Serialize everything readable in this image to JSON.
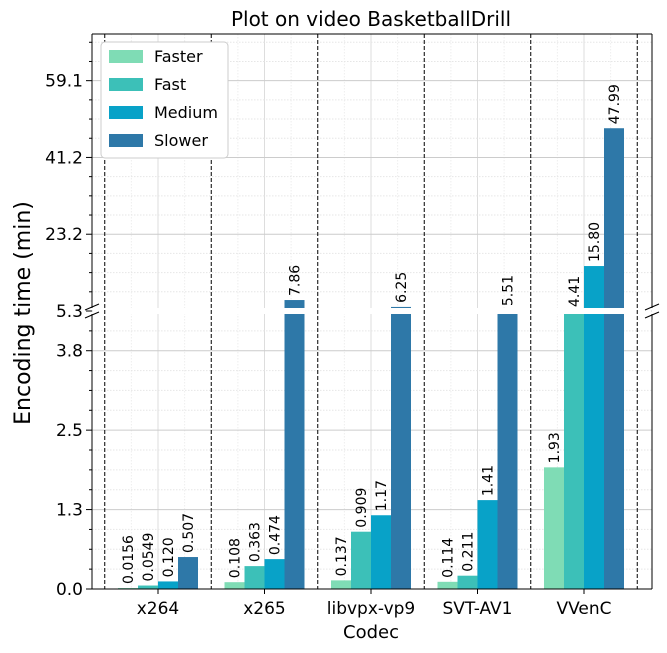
{
  "chart_data": {
    "type": "bar",
    "title": "Plot on video BasketballDrill",
    "xlabel": "Codec",
    "ylabel": "Encoding time (min)",
    "categories": [
      "x264",
      "x265",
      "libvpx-vp9",
      "SVT-AV1",
      "VVenC"
    ],
    "series": [
      {
        "name": "Faster",
        "color": "#7fdcb5",
        "values": [
          0.0156,
          0.108,
          0.137,
          0.114,
          1.93
        ],
        "labels": [
          "0.0156",
          "0.108",
          "0.137",
          "0.114",
          "1.93"
        ]
      },
      {
        "name": "Fast",
        "color": "#3cc0b8",
        "values": [
          0.0549,
          0.363,
          0.909,
          0.211,
          4.41
        ],
        "labels": [
          "0.0549",
          "0.363",
          "0.909",
          "0.211",
          "4.41"
        ]
      },
      {
        "name": "Medium",
        "color": "#08a2c8",
        "values": [
          0.12,
          0.474,
          1.17,
          1.41,
          15.8
        ],
        "labels": [
          "0.120",
          "0.474",
          "1.17",
          "1.41",
          "15.80"
        ]
      },
      {
        "name": "Slower",
        "color": "#2e78a8",
        "values": [
          0.507,
          7.86,
          6.25,
          5.51,
          47.99
        ],
        "labels": [
          "0.507",
          "7.86",
          "6.25",
          "5.51",
          "47.99"
        ]
      }
    ],
    "y_break": {
      "lower_range": [
        0,
        4.41
      ],
      "upper_range": [
        5.3,
        70
      ],
      "lower_ticks": [
        "0.0",
        "1.3",
        "2.5",
        "3.8"
      ],
      "upper_ticks": [
        "5.3",
        "23.2",
        "41.2",
        "59.1"
      ]
    },
    "legend_position": "top-left",
    "grid": true
  }
}
